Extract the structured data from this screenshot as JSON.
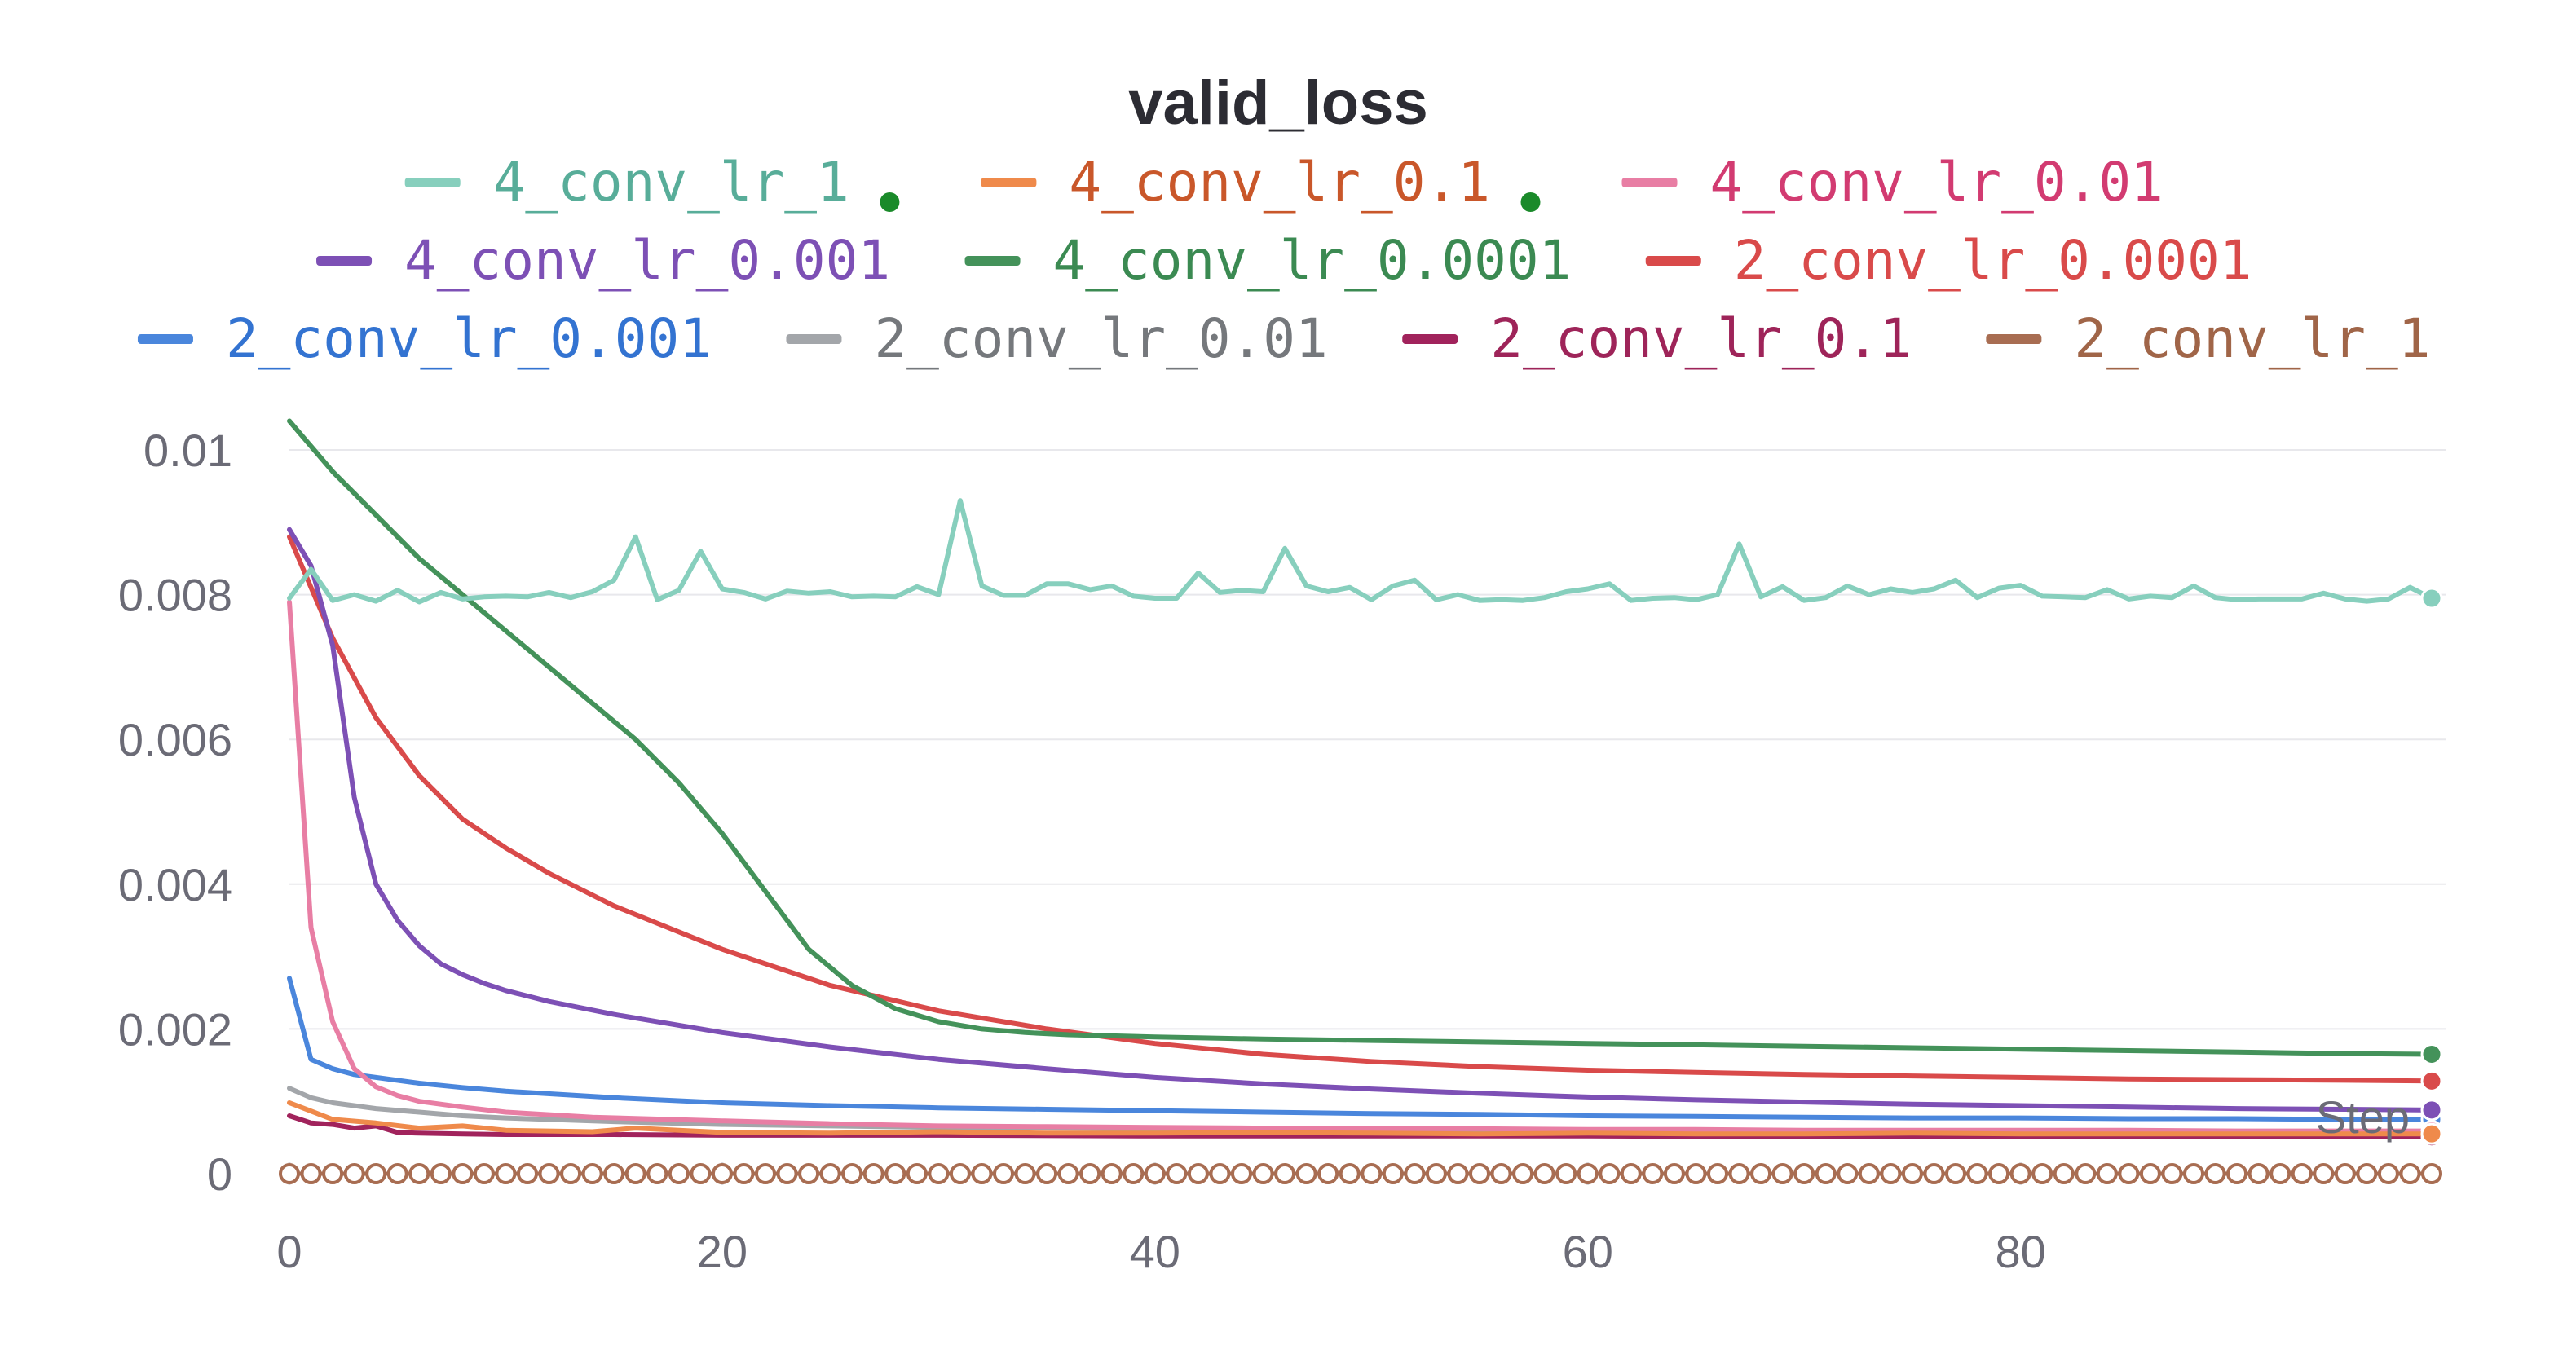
{
  "chart_data": {
    "type": "line",
    "title": "valid_loss",
    "xlabel": "Step",
    "ylabel": "",
    "xlim": [
      0,
      99
    ],
    "ylim": [
      0,
      0.01
    ],
    "x_ticks": [
      0,
      20,
      40,
      60,
      80
    ],
    "y_ticks": [
      0,
      0.002,
      0.004,
      0.006,
      0.008,
      0.01
    ],
    "y_tick_labels": [
      "0",
      "0.002",
      "0.004",
      "0.006",
      "0.008",
      "0.01"
    ],
    "x_tick_labels": [
      "0",
      "20",
      "40",
      "60",
      "80"
    ],
    "grid": true,
    "legend_position": "top",
    "series": [
      {
        "name": "4_conv_lr_1",
        "color": "#87cfbd",
        "text_color": "#58ad99",
        "marker": "filled-dot",
        "has_green_dot": true,
        "x": [
          0,
          1,
          2,
          3,
          4,
          5,
          6,
          7,
          8,
          9,
          10,
          11,
          12,
          13,
          14,
          15,
          16,
          17,
          18,
          19,
          20,
          21,
          22,
          23,
          24,
          25,
          26,
          27,
          28,
          29,
          30,
          31,
          32,
          33,
          34,
          35,
          36,
          37,
          38,
          39,
          40,
          41,
          42,
          43,
          44,
          45,
          46,
          47,
          48,
          49,
          50,
          51,
          52,
          53,
          54,
          55,
          56,
          57,
          58,
          59,
          60,
          61,
          62,
          63,
          64,
          65,
          66,
          67,
          68,
          69,
          70,
          71,
          72,
          73,
          74,
          75,
          76,
          77,
          78,
          79,
          80,
          81,
          82,
          83,
          84,
          85,
          86,
          87,
          88,
          89,
          90,
          91,
          92,
          93,
          94,
          95,
          96,
          97,
          98,
          99
        ],
        "values": [
          0.00795,
          0.00835,
          0.00792,
          0.008,
          0.00791,
          0.00806,
          0.0079,
          0.00803,
          0.00794,
          0.00797,
          0.00798,
          0.00797,
          0.00803,
          0.00796,
          0.00804,
          0.0082,
          0.0088,
          0.00793,
          0.00806,
          0.0086,
          0.00808,
          0.00803,
          0.00794,
          0.00805,
          0.00802,
          0.00804,
          0.00797,
          0.00798,
          0.00797,
          0.00811,
          0.008,
          0.0093,
          0.00812,
          0.00799,
          0.00799,
          0.00815,
          0.00815,
          0.00807,
          0.00812,
          0.00798,
          0.00795,
          0.00795,
          0.0083,
          0.00803,
          0.00806,
          0.00804,
          0.00864,
          0.00812,
          0.00804,
          0.0081,
          0.00793,
          0.00812,
          0.0082,
          0.00793,
          0.008,
          0.00792,
          0.00793,
          0.00792,
          0.00796,
          0.00804,
          0.00808,
          0.00815,
          0.00792,
          0.00795,
          0.00796,
          0.00793,
          0.008,
          0.0087,
          0.00797,
          0.00811,
          0.00792,
          0.00796,
          0.00812,
          0.008,
          0.00808,
          0.00803,
          0.00808,
          0.0082,
          0.00796,
          0.00809,
          0.00813,
          0.00798,
          0.00797,
          0.00796,
          0.00807,
          0.00794,
          0.00798,
          0.00796,
          0.00812,
          0.00796,
          0.00793,
          0.00794,
          0.00794,
          0.00794,
          0.00802,
          0.00794,
          0.00791,
          0.00794,
          0.0081,
          0.00795
        ]
      },
      {
        "name": "4_conv_lr_0.1",
        "color": "#ef8a4b",
        "text_color": "#c9572a",
        "marker": "filled-dot",
        "has_green_dot": true,
        "x": [
          0,
          2,
          4,
          6,
          8,
          10,
          14,
          16,
          20,
          25,
          30,
          35,
          40,
          45,
          50,
          55,
          60,
          65,
          70,
          75,
          80,
          85,
          90,
          95,
          99
        ],
        "values": [
          0.00098,
          0.00075,
          0.0007,
          0.00063,
          0.00066,
          0.0006,
          0.00058,
          0.00063,
          0.00057,
          0.00056,
          0.00058,
          0.00056,
          0.00056,
          0.00057,
          0.00056,
          0.00055,
          0.00056,
          0.00055,
          0.00055,
          0.00056,
          0.00055,
          0.00055,
          0.00055,
          0.00055,
          0.00055
        ]
      },
      {
        "name": "4_conv_lr_0.01",
        "color": "#e87ea4",
        "text_color": "#d23b71",
        "marker": "filled-dot",
        "has_green_dot": false,
        "x": [
          0,
          1,
          2,
          3,
          4,
          5,
          6,
          8,
          10,
          14,
          20,
          25,
          30,
          35,
          40,
          45,
          50,
          55,
          60,
          65,
          70,
          75,
          80,
          85,
          90,
          95,
          99
        ],
        "values": [
          0.0079,
          0.0034,
          0.0021,
          0.00145,
          0.0012,
          0.00108,
          0.001,
          0.00092,
          0.00085,
          0.00078,
          0.00073,
          0.00069,
          0.00066,
          0.00065,
          0.00064,
          0.00063,
          0.00062,
          0.00062,
          0.00061,
          0.00061,
          0.0006,
          0.0006,
          0.0006,
          0.0006,
          0.00059,
          0.00059,
          0.00059
        ]
      },
      {
        "name": "4_conv_lr_0.001",
        "color": "#7d50b5",
        "text_color": "#7d50b5",
        "marker": "filled-dot",
        "has_green_dot": false,
        "x": [
          0,
          1,
          2,
          3,
          4,
          5,
          6,
          7,
          8,
          9,
          10,
          12,
          15,
          20,
          25,
          30,
          35,
          40,
          45,
          50,
          55,
          60,
          65,
          70,
          75,
          80,
          85,
          90,
          95,
          99
        ],
        "values": [
          0.0089,
          0.0084,
          0.0073,
          0.0052,
          0.004,
          0.0035,
          0.00315,
          0.0029,
          0.00275,
          0.00263,
          0.00253,
          0.00238,
          0.0022,
          0.00195,
          0.00175,
          0.00158,
          0.00145,
          0.00133,
          0.00124,
          0.00117,
          0.00111,
          0.00106,
          0.00102,
          0.00099,
          0.00096,
          0.00094,
          0.00092,
          0.0009,
          0.00089,
          0.00088
        ]
      },
      {
        "name": "4_conv_lr_0.0001",
        "color": "#44925a",
        "text_color": "#3b8a52",
        "marker": "filled-dot",
        "has_green_dot": false,
        "x": [
          0,
          2,
          4,
          6,
          8,
          10,
          12,
          14,
          16,
          18,
          20,
          22,
          24,
          26,
          28,
          30,
          32,
          34,
          36,
          40,
          45,
          50,
          55,
          60,
          65,
          70,
          75,
          80,
          85,
          90,
          95,
          99
        ],
        "values": [
          0.0104,
          0.0097,
          0.0091,
          0.0085,
          0.008,
          0.0075,
          0.007,
          0.0065,
          0.006,
          0.0054,
          0.0047,
          0.0039,
          0.0031,
          0.0026,
          0.00228,
          0.0021,
          0.002,
          0.00195,
          0.00192,
          0.00189,
          0.00186,
          0.00184,
          0.00182,
          0.0018,
          0.00178,
          0.00176,
          0.00174,
          0.00172,
          0.0017,
          0.00168,
          0.00166,
          0.00165
        ]
      },
      {
        "name": "2_conv_lr_0.0001",
        "color": "#d94a4a",
        "text_color": "#d94a4a",
        "marker": "filled-dot",
        "has_green_dot": false,
        "x": [
          0,
          1,
          2,
          4,
          6,
          8,
          10,
          12,
          15,
          20,
          25,
          30,
          35,
          40,
          45,
          50,
          55,
          60,
          65,
          70,
          75,
          80,
          85,
          90,
          95,
          99
        ],
        "values": [
          0.0088,
          0.0081,
          0.0074,
          0.0063,
          0.0055,
          0.0049,
          0.0045,
          0.00415,
          0.0037,
          0.0031,
          0.0026,
          0.00225,
          0.002,
          0.0018,
          0.00165,
          0.00155,
          0.00148,
          0.00143,
          0.0014,
          0.00137,
          0.00135,
          0.00133,
          0.00131,
          0.0013,
          0.00129,
          0.00128
        ]
      },
      {
        "name": "2_conv_lr_0.001",
        "color": "#4a86dc",
        "text_color": "#3373d1",
        "marker": "filled-dot",
        "has_green_dot": false,
        "x": [
          0,
          1,
          2,
          3,
          4,
          6,
          8,
          10,
          15,
          20,
          25,
          30,
          35,
          40,
          45,
          50,
          55,
          60,
          65,
          70,
          75,
          80,
          85,
          90,
          95,
          99
        ],
        "values": [
          0.0027,
          0.00158,
          0.00145,
          0.00137,
          0.00133,
          0.00125,
          0.00119,
          0.00114,
          0.00105,
          0.00098,
          0.00094,
          0.00091,
          0.00089,
          0.00087,
          0.00085,
          0.00083,
          0.00082,
          0.0008,
          0.00079,
          0.00078,
          0.00077,
          0.00077,
          0.00076,
          0.00076,
          0.00075,
          0.00075
        ]
      },
      {
        "name": "2_conv_lr_0.01",
        "color": "#a3a6aa",
        "text_color": "#75787c",
        "marker": "filled-dot",
        "has_green_dot": false,
        "x": [
          0,
          1,
          2,
          4,
          6,
          8,
          10,
          15,
          20,
          25,
          30,
          40,
          50,
          60,
          70,
          80,
          90,
          99
        ],
        "values": [
          0.00118,
          0.00105,
          0.00098,
          0.0009,
          0.00085,
          0.0008,
          0.00077,
          0.00072,
          0.00068,
          0.00066,
          0.00064,
          0.00062,
          0.00061,
          0.0006,
          0.00059,
          0.00058,
          0.00058,
          0.00057
        ]
      },
      {
        "name": "2_conv_lr_0.1",
        "color": "#a1235c",
        "text_color": "#9e2459",
        "marker": "filled-dot",
        "has_green_dot": false,
        "x": [
          0,
          1,
          2,
          3,
          4,
          5,
          6,
          8,
          10,
          15,
          20,
          25,
          30,
          40,
          50,
          60,
          70,
          80,
          90,
          99
        ],
        "values": [
          0.0008,
          0.0007,
          0.00068,
          0.00063,
          0.00066,
          0.00057,
          0.00056,
          0.00055,
          0.00054,
          0.00054,
          0.00053,
          0.00053,
          0.00053,
          0.00052,
          0.00052,
          0.00052,
          0.00051,
          0.00051,
          0.00051,
          0.00051
        ]
      },
      {
        "name": "2_conv_lr_1",
        "color": "#a86d52",
        "text_color": "#a06548",
        "marker": "hollow-circle",
        "has_green_dot": false,
        "constant_value": 0,
        "x_from": 0,
        "x_to": 99
      }
    ]
  }
}
